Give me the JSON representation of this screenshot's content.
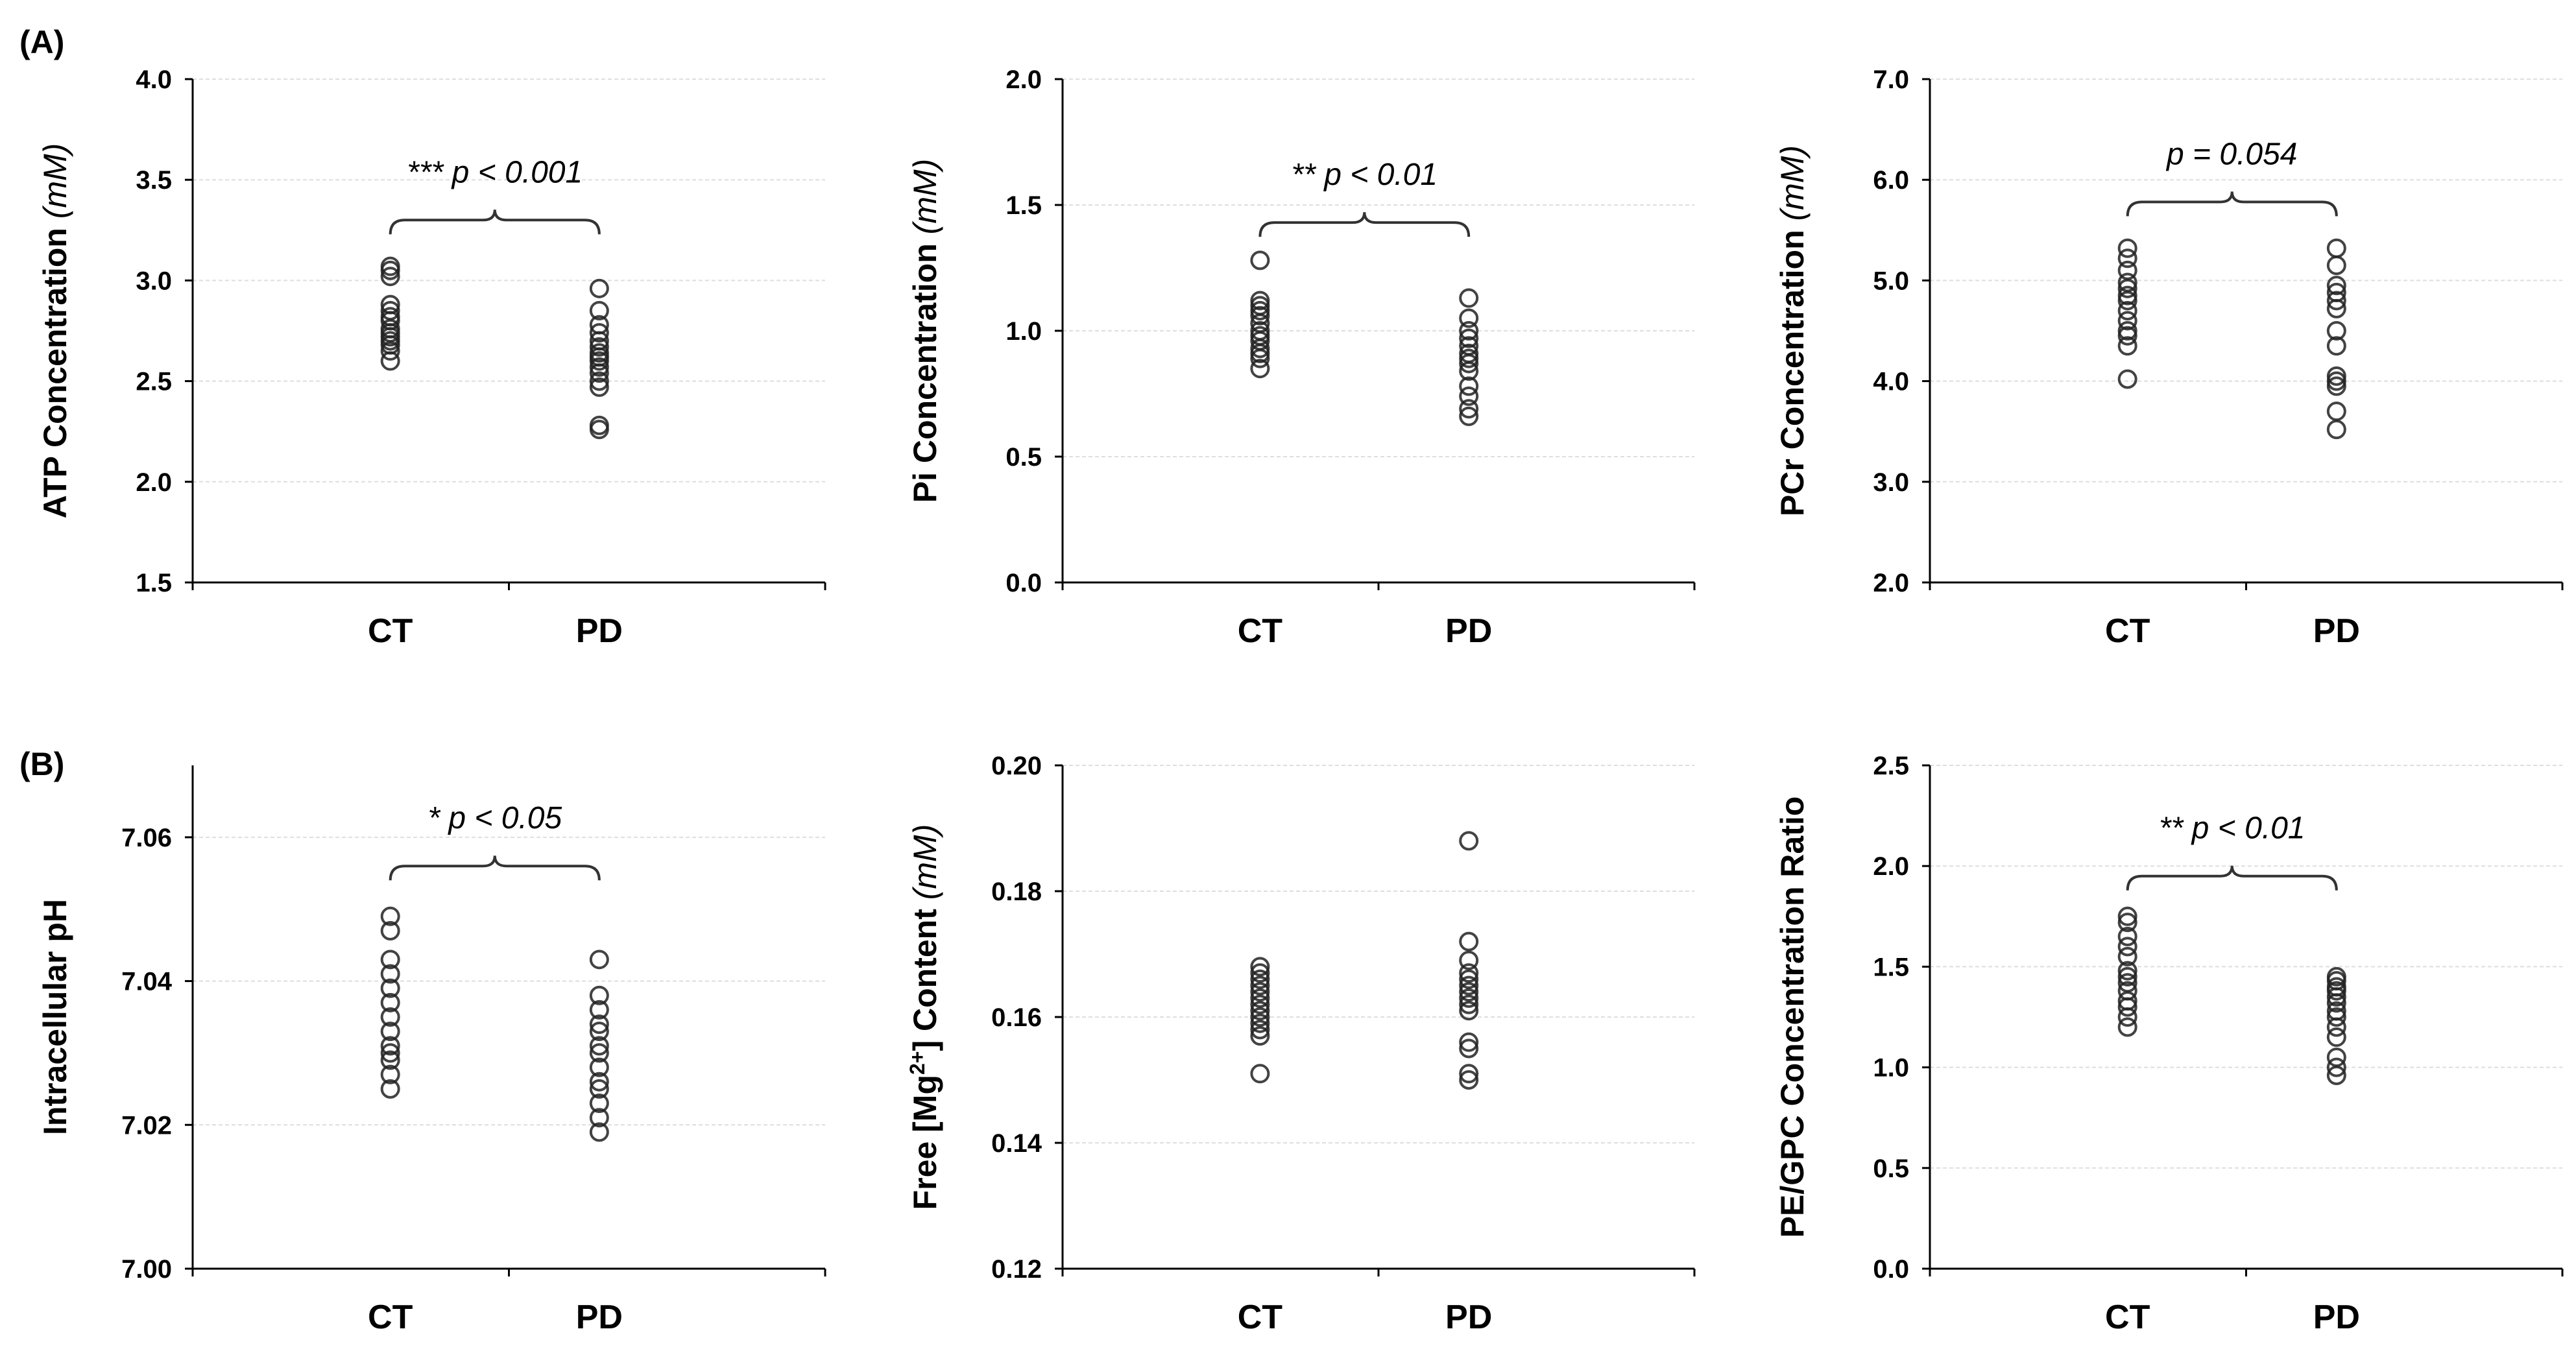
{
  "panel_labels": [
    "(A)",
    "(B)"
  ],
  "chart_data": [
    {
      "type": "scatter",
      "ylabel": "ATP Concentration",
      "yunit": "(mM)",
      "categories": [
        "CT",
        "PD"
      ],
      "ylim": [
        1.5,
        4.0
      ],
      "yticks": [
        "1.5",
        "2.0",
        "2.5",
        "3.0",
        "3.5",
        "4.0"
      ],
      "grid": true,
      "series": [
        {
          "name": "CT",
          "values": [
            3.07,
            3.05,
            3.02,
            2.88,
            2.85,
            2.82,
            2.8,
            2.76,
            2.74,
            2.72,
            2.7,
            2.68,
            2.65,
            2.6
          ]
        },
        {
          "name": "PD",
          "values": [
            2.96,
            2.85,
            2.78,
            2.74,
            2.7,
            2.67,
            2.64,
            2.62,
            2.6,
            2.57,
            2.54,
            2.5,
            2.47,
            2.28,
            2.26
          ]
        }
      ],
      "annotation": "*** p < 0.001",
      "bracket_y": 3.3
    },
    {
      "type": "scatter",
      "ylabel": "Pi Concentration",
      "yunit": "(mM)",
      "categories": [
        "CT",
        "PD"
      ],
      "ylim": [
        0.0,
        2.0
      ],
      "yticks": [
        "0.0",
        "0.5",
        "1.0",
        "1.5",
        "2.0"
      ],
      "grid": true,
      "series": [
        {
          "name": "CT",
          "values": [
            1.28,
            1.12,
            1.1,
            1.08,
            1.06,
            1.03,
            1.0,
            0.98,
            0.96,
            0.93,
            0.91,
            0.89,
            0.85
          ]
        },
        {
          "name": "PD",
          "values": [
            1.13,
            1.05,
            1.0,
            0.97,
            0.94,
            0.91,
            0.89,
            0.87,
            0.84,
            0.78,
            0.74,
            0.69,
            0.66
          ]
        }
      ],
      "annotation": "** p < 0.01",
      "bracket_y": 1.43
    },
    {
      "type": "scatter",
      "ylabel": "PCr Concentration",
      "yunit": "(mM)",
      "categories": [
        "CT",
        "PD"
      ],
      "ylim": [
        2.0,
        7.0
      ],
      "yticks": [
        "2.0",
        "3.0",
        "4.0",
        "5.0",
        "6.0",
        "7.0"
      ],
      "grid": true,
      "series": [
        {
          "name": "CT",
          "values": [
            5.32,
            5.22,
            5.1,
            4.98,
            4.92,
            4.85,
            4.8,
            4.7,
            4.6,
            4.5,
            4.45,
            4.35,
            4.02
          ]
        },
        {
          "name": "PD",
          "values": [
            5.32,
            5.15,
            4.95,
            4.88,
            4.8,
            4.72,
            4.5,
            4.35,
            4.05,
            4.0,
            3.95,
            3.7,
            3.52
          ]
        }
      ],
      "annotation": "p = 0.054",
      "bracket_y": 5.78
    },
    {
      "type": "scatter",
      "ylabel": "Intracellular pH",
      "yunit": "",
      "categories": [
        "CT",
        "PD"
      ],
      "ylim": [
        7.0,
        7.07
      ],
      "yticks": [
        "7.00",
        "7.02",
        "7.04",
        "7.06"
      ],
      "grid": true,
      "series": [
        {
          "name": "CT",
          "values": [
            7.049,
            7.047,
            7.043,
            7.041,
            7.039,
            7.037,
            7.035,
            7.033,
            7.031,
            7.03,
            7.029,
            7.027,
            7.025
          ]
        },
        {
          "name": "PD",
          "values": [
            7.043,
            7.038,
            7.036,
            7.034,
            7.033,
            7.031,
            7.03,
            7.028,
            7.026,
            7.025,
            7.023,
            7.021,
            7.019
          ]
        }
      ],
      "annotation": "* p < 0.05",
      "bracket_y": 7.056
    },
    {
      "type": "scatter",
      "ylabel": "Free [Mg",
      "ylabel_sup": "2+",
      "ylabel_rest": "] Content",
      "yunit": "(mM)",
      "categories": [
        "CT",
        "PD"
      ],
      "ylim": [
        0.12,
        0.2
      ],
      "yticks": [
        "0.12",
        "0.14",
        "0.16",
        "0.18",
        "0.20"
      ],
      "grid": true,
      "series": [
        {
          "name": "CT",
          "values": [
            0.168,
            0.167,
            0.166,
            0.165,
            0.164,
            0.163,
            0.162,
            0.161,
            0.16,
            0.159,
            0.158,
            0.157,
            0.151
          ]
        },
        {
          "name": "PD",
          "values": [
            0.188,
            0.172,
            0.169,
            0.167,
            0.166,
            0.165,
            0.164,
            0.163,
            0.162,
            0.161,
            0.156,
            0.155,
            0.151,
            0.15
          ]
        }
      ],
      "annotation": "",
      "bracket_y": null
    },
    {
      "type": "scatter",
      "ylabel": "PE/GPC Concentration Ratio",
      "yunit": "",
      "categories": [
        "CT",
        "PD"
      ],
      "ylim": [
        0.0,
        2.5
      ],
      "yticks": [
        "0.0",
        "0.5",
        "1.0",
        "1.5",
        "2.0",
        "2.5"
      ],
      "grid": true,
      "series": [
        {
          "name": "CT",
          "values": [
            1.75,
            1.72,
            1.65,
            1.6,
            1.55,
            1.48,
            1.45,
            1.42,
            1.38,
            1.33,
            1.3,
            1.25,
            1.2
          ]
        },
        {
          "name": "PD",
          "values": [
            1.45,
            1.43,
            1.4,
            1.38,
            1.35,
            1.32,
            1.28,
            1.25,
            1.2,
            1.15,
            1.05,
            1.0,
            0.96
          ]
        }
      ],
      "annotation": "** p < 0.01",
      "bracket_y": 1.95
    }
  ]
}
